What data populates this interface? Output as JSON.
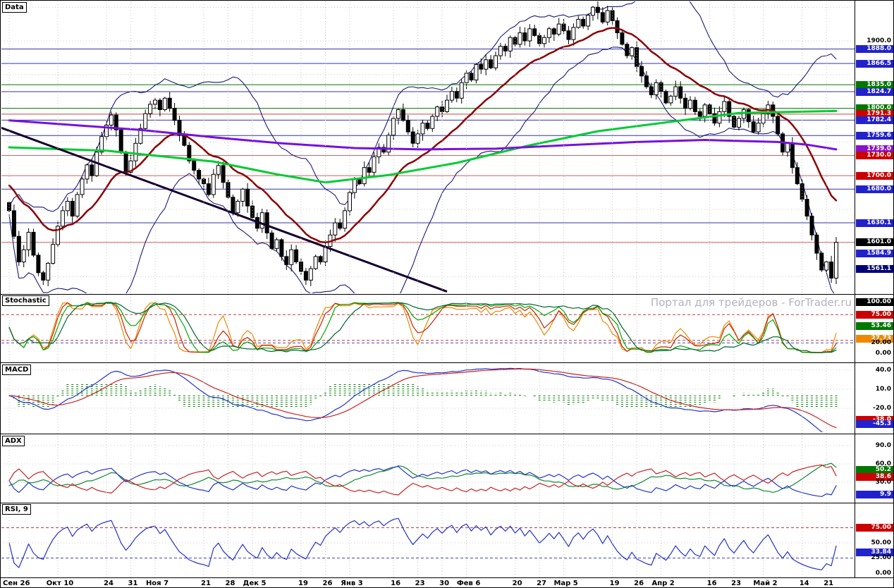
{
  "chart_data": {
    "type": "candlestick",
    "watermark": "Портал для трейдеров - ForTrader.ru",
    "x_axis": {
      "labels": [
        {
          "label": "Сен 26",
          "day": 0
        },
        {
          "label": "Окт 10",
          "day": 10
        },
        {
          "label": "24",
          "day": 20
        },
        {
          "label": "31",
          "day": 25
        },
        {
          "label": "Ноя 7",
          "day": 30
        },
        {
          "label": "21",
          "day": 40
        },
        {
          "label": "28",
          "day": 45
        },
        {
          "label": "Дек 5",
          "day": 50
        },
        {
          "label": "19",
          "day": 60
        },
        {
          "label": "26",
          "day": 65
        },
        {
          "label": "Янв 3",
          "day": 70
        },
        {
          "label": "16",
          "day": 79
        },
        {
          "label": "23",
          "day": 84
        },
        {
          "label": "30",
          "day": 89
        },
        {
          "label": "Фев 6",
          "day": 94
        },
        {
          "label": "20",
          "day": 104
        },
        {
          "label": "27",
          "day": 109
        },
        {
          "label": "Мар 5",
          "day": 114
        },
        {
          "label": "19",
          "day": 124
        },
        {
          "label": "26",
          "day": 129
        },
        {
          "label": "Апр 2",
          "day": 134
        },
        {
          "label": "16",
          "day": 144
        },
        {
          "label": "23",
          "day": 149
        },
        {
          "label": "Май 2",
          "day": 155
        },
        {
          "label": "14",
          "day": 163
        },
        {
          "label": "21",
          "day": 168
        }
      ]
    },
    "main": {
      "title": "Data",
      "price_scale_labels": [
        {
          "text": "1900.0",
          "style": "plain",
          "value": 1900.0
        },
        {
          "text": "1888.0",
          "style": "blue",
          "value": 1888.0
        },
        {
          "text": "1866.5",
          "style": "blue",
          "value": 1866.5
        },
        {
          "text": "1835.0",
          "style": "green",
          "value": 1835.0
        },
        {
          "text": "1824.7",
          "style": "blue",
          "value": 1824.7
        },
        {
          "text": "1800.0",
          "style": "green",
          "value": 1800.0
        },
        {
          "text": "1791.3",
          "style": "red",
          "value": 1791.3
        },
        {
          "text": "1782.4",
          "style": "blue",
          "value": 1782.4
        },
        {
          "text": "1759.6",
          "style": "blue",
          "value": 1759.6
        },
        {
          "text": "1739.0",
          "style": "purple",
          "value": 1739.0
        },
        {
          "text": "1730.0",
          "style": "red",
          "value": 1730.0
        },
        {
          "text": "1700.0",
          "style": "red",
          "value": 1700.0
        },
        {
          "text": "1680.0",
          "style": "blue",
          "value": 1680.0
        },
        {
          "text": "1630.1",
          "style": "blue",
          "value": 1630.1
        },
        {
          "text": "1601.0",
          "style": "black",
          "value": 1601.0
        },
        {
          "text": "1584.9",
          "style": "blue",
          "value": 1584.9
        },
        {
          "text": "1561.1",
          "style": "navy",
          "value": 1561.1
        }
      ],
      "level_lines": [
        {
          "price": 1888.0,
          "color": "#3333aa"
        },
        {
          "price": 1866.5,
          "color": "#3333aa"
        },
        {
          "price": 1835.0,
          "color": "#007700"
        },
        {
          "price": 1824.7,
          "color": "#3333aa"
        },
        {
          "price": 1800.0,
          "color": "#007700"
        },
        {
          "price": 1791.3,
          "color": "#cc4444"
        },
        {
          "price": 1782.4,
          "color": "#3333aa"
        },
        {
          "price": 1759.6,
          "color": "#3333aa"
        },
        {
          "price": 1730.0,
          "color": "#cc6666"
        },
        {
          "price": 1700.0,
          "color": "#cc6666"
        },
        {
          "price": 1680.0,
          "color": "#3333aa"
        },
        {
          "price": 1630.1,
          "color": "#3333aa"
        },
        {
          "price": 1601.0,
          "color": "#cc6666"
        }
      ],
      "trendline": {
        "day_start": -2,
        "price_start": 1772,
        "day_end": 90,
        "price_end": 1528,
        "color": "#14002e"
      },
      "bollinger": {
        "period": 20,
        "deviation": 2,
        "color": "#1a1a7a"
      },
      "moving_averages": {
        "fast": {
          "name": "smoothed-ma-dark-red",
          "period": 18,
          "seed": 1690,
          "color": "#8b0000"
        },
        "medium": {
          "name": "ma-lime",
          "color": "#00cc33",
          "points": [
            [
              0,
              1742
            ],
            [
              20,
              1737
            ],
            [
              42,
              1721
            ],
            [
              55,
              1702
            ],
            [
              65,
              1690
            ],
            [
              78,
              1701
            ],
            [
              92,
              1719
            ],
            [
              107,
              1745
            ],
            [
              121,
              1766
            ],
            [
              136,
              1780
            ],
            [
              150,
              1793
            ],
            [
              170,
              1796
            ]
          ]
        },
        "slow": {
          "name": "ma-purple",
          "color": "#7711dd",
          "points": [
            [
              0,
              1782
            ],
            [
              27,
              1768
            ],
            [
              42,
              1757
            ],
            [
              56,
              1748
            ],
            [
              71,
              1741
            ],
            [
              85,
              1739
            ],
            [
              100,
              1740
            ],
            [
              114,
              1745
            ],
            [
              129,
              1750
            ],
            [
              143,
              1753
            ],
            [
              158,
              1750
            ],
            [
              164,
              1746
            ],
            [
              170,
              1739
            ]
          ]
        }
      },
      "candles": {
        "bull_color": "#ffffff",
        "bear_color": "#000000",
        "close": [
          1648,
          1610,
          1572,
          1590,
          1616,
          1582,
          1556,
          1545,
          1570,
          1598,
          1625,
          1648,
          1662,
          1640,
          1672,
          1695,
          1716,
          1700,
          1735,
          1758,
          1775,
          1790,
          1768,
          1735,
          1705,
          1722,
          1748,
          1770,
          1792,
          1806,
          1812,
          1798,
          1815,
          1800,
          1782,
          1760,
          1745,
          1722,
          1708,
          1695,
          1688,
          1672,
          1702,
          1715,
          1690,
          1668,
          1645,
          1662,
          1680,
          1655,
          1638,
          1622,
          1645,
          1615,
          1592,
          1605,
          1580,
          1568,
          1590,
          1572,
          1558,
          1545,
          1562,
          1580,
          1572,
          1595,
          1612,
          1630,
          1622,
          1648,
          1675,
          1695,
          1688,
          1712,
          1705,
          1728,
          1742,
          1735,
          1760,
          1785,
          1798,
          1782,
          1765,
          1748,
          1762,
          1778,
          1770,
          1788,
          1802,
          1795,
          1812,
          1825,
          1815,
          1838,
          1852,
          1842,
          1865,
          1858,
          1872,
          1860,
          1878,
          1892,
          1885,
          1905,
          1895,
          1912,
          1900,
          1918,
          1908,
          1896,
          1905,
          1918,
          1910,
          1925,
          1915,
          1902,
          1920,
          1932,
          1922,
          1938,
          1950,
          1942,
          1928,
          1945,
          1930,
          1912,
          1895,
          1878,
          1890,
          1862,
          1848,
          1832,
          1820,
          1838,
          1825,
          1808,
          1818,
          1832,
          1815,
          1800,
          1812,
          1795,
          1788,
          1805,
          1792,
          1778,
          1795,
          1810,
          1788,
          1772,
          1785,
          1798,
          1780,
          1765,
          1778,
          1792,
          1805,
          1788,
          1762,
          1735,
          1748,
          1712,
          1688,
          1665,
          1640,
          1612,
          1585,
          1560,
          1572,
          1548,
          1601
        ]
      }
    },
    "stochastic": {
      "title": "Stochastic",
      "scale_labels": [
        {
          "text": "100.00",
          "style": "black",
          "value": 100
        },
        {
          "text": "75.00",
          "style": "red",
          "value": 75
        },
        {
          "text": "53.46",
          "style": "green",
          "value": 53.46
        },
        {
          "text": "27.73",
          "style": "orange",
          "value": 27.73
        },
        {
          "text": "20.00",
          "style": "plain",
          "value": 20
        },
        {
          "text": "0.00",
          "style": "plain",
          "value": 0
        }
      ],
      "levels": [
        {
          "value": 75,
          "color": "#cc3333"
        },
        {
          "value": 25,
          "color": "#cc3333"
        },
        {
          "value": 20,
          "color": "#4444cc"
        }
      ],
      "lines": [
        {
          "period": 5,
          "smooth": 3,
          "color": "#ee8800"
        },
        {
          "period": 8,
          "smooth": 3,
          "color": "#cc2200"
        },
        {
          "period": 13,
          "smooth": 3,
          "color": "#00aa00"
        },
        {
          "period": 21,
          "smooth": 5,
          "color": "#006633"
        }
      ]
    },
    "macd": {
      "title": "MACD",
      "fast": 12,
      "slow": 26,
      "signal": 9,
      "line_color": "#2233cc",
      "signal_color": "#cc2222",
      "histogram_color": "#118811",
      "grid_values": [
        40,
        10,
        -20
      ],
      "scale_labels": [
        {
          "text": "40.0",
          "style": "plain",
          "value": 40
        },
        {
          "text": "10.0",
          "style": "plain",
          "value": 10
        },
        {
          "text": "-20.0",
          "style": "plain",
          "value": -20
        },
        {
          "text": "-38.0",
          "style": "red",
          "value": -38
        },
        {
          "text": "-45.3",
          "style": "blue",
          "value": -45.3
        }
      ]
    },
    "adx": {
      "title": "ADX",
      "period": 14,
      "adx_color": "#118833",
      "plus_di_color": "#2233cc",
      "minus_di_color": "#cc2222",
      "grid_values": [
        90,
        60,
        30
      ],
      "scale_labels": [
        {
          "text": "90.0",
          "style": "plain",
          "value": 90
        },
        {
          "text": "60.0",
          "style": "plain",
          "value": 60
        },
        {
          "text": "50.2",
          "style": "green",
          "value": 50.2
        },
        {
          "text": "38.6",
          "style": "red",
          "value": 38.6
        },
        {
          "text": "30.0",
          "style": "plain",
          "value": 30
        },
        {
          "text": "9.9",
          "style": "blue",
          "value": 9.9
        }
      ]
    },
    "rsi": {
      "title": "RSI, 9",
      "period": 9,
      "line_color": "#2233cc",
      "grid_values": [
        50
      ],
      "levels": [
        {
          "value": 75,
          "color": "#cc3333"
        },
        {
          "value": 25,
          "color": "#4444cc"
        }
      ],
      "scale_labels": [
        {
          "text": "75.00",
          "style": "red",
          "value": 75
        },
        {
          "text": "50.00",
          "style": "plain",
          "value": 50
        },
        {
          "text": "33.84",
          "style": "blue",
          "value": 33.84
        },
        {
          "text": "25.00",
          "style": "plain",
          "value": 25
        },
        {
          "text": "0.00",
          "style": "plain",
          "value": 0
        }
      ]
    },
    "colors": {
      "badge_blue": "#2222cc",
      "badge_red": "#cc0000",
      "badge_green": "#007700",
      "badge_purple": "#8811cc",
      "badge_black": "#000000",
      "badge_navy": "#000077",
      "badge_orange": "#ee8800",
      "plain_text": "#000000"
    }
  }
}
